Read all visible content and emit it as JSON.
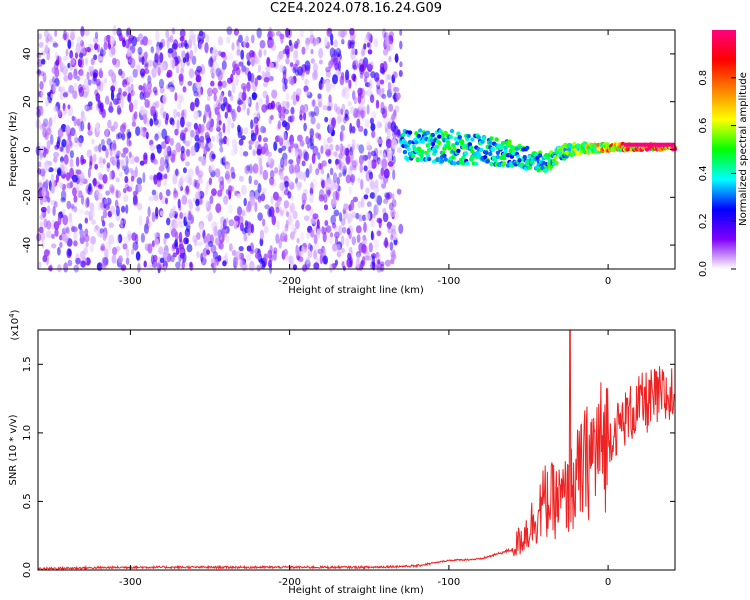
{
  "figure_title": "C2E4.2024.078.16.24.G09",
  "chart_data": [
    {
      "type": "heatmap",
      "xlabel": "Height of straight line (km)",
      "ylabel": "Frequency (Hz)",
      "xlim": [
        -358,
        42
      ],
      "ylim": [
        -50,
        50
      ],
      "xticks": [
        -300,
        -200,
        -100,
        0
      ],
      "yticks": [
        -40,
        -20,
        0,
        20,
        40
      ],
      "colorbar": {
        "label": "Normalized spectral amplitude",
        "range": [
          0.0,
          1.0
        ],
        "ticks": [
          "0.0",
          "0.2",
          "0.4",
          "0.6",
          "0.8"
        ],
        "colormap": [
          "#ffffff",
          "#8000ff",
          "#0000ff",
          "#00ffff",
          "#00ff00",
          "#ffff00",
          "#ff8000",
          "#ff0000",
          "#ff0080"
        ]
      },
      "signal_track": [
        {
          "x": -130,
          "f_center": 2,
          "f_width": 12,
          "peak_amp": 0.45
        },
        {
          "x": -100,
          "f_center": 1,
          "f_width": 14,
          "peak_amp": 0.5
        },
        {
          "x": -80,
          "f_center": 0,
          "f_width": 12,
          "peak_amp": 0.45
        },
        {
          "x": -60,
          "f_center": -2,
          "f_width": 10,
          "peak_amp": 0.5
        },
        {
          "x": -40,
          "f_center": -6,
          "f_width": 8,
          "peak_amp": 0.5
        },
        {
          "x": -25,
          "f_center": 0,
          "f_width": 5,
          "peak_amp": 0.55
        },
        {
          "x": 0,
          "f_center": 1,
          "f_width": 3,
          "peak_amp": 0.8
        },
        {
          "x": 42,
          "f_center": 1,
          "f_width": 2,
          "peak_amp": 1.0
        }
      ],
      "noise_region_x": [
        -358,
        -130
      ]
    },
    {
      "type": "line",
      "xlabel": "Height of straight line (km)",
      "ylabel": "SNR (10 * v/v)",
      "y_multiplier": "(x10",
      "y_multiplier_exp": "4",
      "y_multiplier_close": ")",
      "xlim": [
        -358,
        42
      ],
      "ylim": [
        0,
        1.75
      ],
      "xticks": [
        -300,
        -200,
        -100,
        0
      ],
      "yticks": [
        "0.0",
        "0.5",
        "1.0",
        "1.5"
      ],
      "series": [
        {
          "color": "#ee2222",
          "x": [
            -358,
            -300,
            -250,
            -200,
            -150,
            -120,
            -100,
            -80,
            -60,
            -50,
            -40,
            -30,
            -25,
            -20,
            -10,
            0,
            10,
            20,
            30,
            42
          ],
          "y": [
            0.01,
            0.02,
            0.02,
            0.02,
            0.02,
            0.03,
            0.07,
            0.08,
            0.15,
            0.3,
            0.5,
            0.5,
            0.55,
            0.65,
            0.85,
            0.95,
            1.1,
            1.2,
            1.25,
            1.27
          ],
          "spike": {
            "x": -24,
            "y": 1.75
          }
        }
      ]
    }
  ]
}
